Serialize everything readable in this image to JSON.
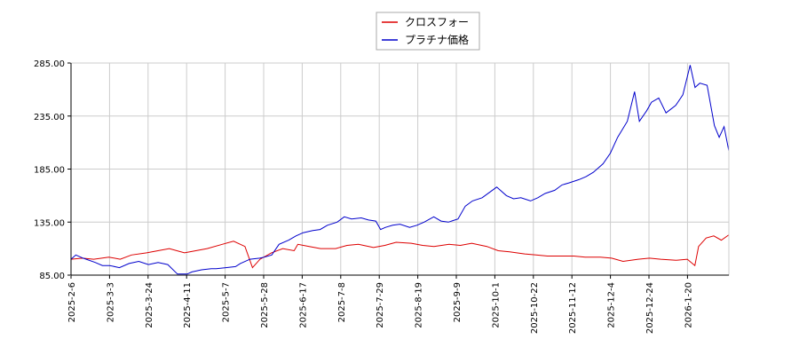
{
  "chart_data": {
    "type": "line",
    "title": "",
    "xlabel": "",
    "ylabel": "",
    "ylim": [
      85,
      285
    ],
    "yticks": [
      "85.00",
      "135.00",
      "185.00",
      "235.00",
      "285.00"
    ],
    "xticks": [
      "2025-2-6",
      "2025-3-3",
      "2025-3-24",
      "2025-4-11",
      "2025-5-7",
      "2025-5-28",
      "2025-6-17",
      "2025-7-8",
      "2025-7-29",
      "2025-8-19",
      "2025-9-9",
      "2025-10-1",
      "2025-10-22",
      "2025-11-12",
      "2025-12-4",
      "2025-12-24",
      "2026-1-20"
    ],
    "grid": true,
    "legend_position": "top-center",
    "colors": {
      "series_1": "#dd0000",
      "series_2": "#0000cc",
      "grid": "#cccccc",
      "axis": "#000000"
    },
    "series": [
      {
        "name": "クロスフォー",
        "points": [
          [
            0,
            100
          ],
          [
            0.3,
            101
          ],
          [
            0.6,
            100
          ],
          [
            1,
            102
          ],
          [
            1.3,
            100
          ],
          [
            1.6,
            104
          ],
          [
            2,
            106
          ],
          [
            2.3,
            108
          ],
          [
            2.6,
            110
          ],
          [
            3,
            106
          ],
          [
            3.3,
            108
          ],
          [
            3.6,
            110
          ],
          [
            4,
            114
          ],
          [
            4.3,
            117
          ],
          [
            4.6,
            112
          ],
          [
            4.8,
            92
          ],
          [
            5,
            100
          ],
          [
            5.3,
            106
          ],
          [
            5.6,
            110
          ],
          [
            5.9,
            108
          ],
          [
            6,
            114
          ],
          [
            6.3,
            112
          ],
          [
            6.6,
            110
          ],
          [
            7,
            110
          ],
          [
            7.3,
            113
          ],
          [
            7.6,
            114
          ],
          [
            8,
            111
          ],
          [
            8.3,
            113
          ],
          [
            8.6,
            116
          ],
          [
            9,
            115
          ],
          [
            9.3,
            113
          ],
          [
            9.6,
            112
          ],
          [
            10,
            114
          ],
          [
            10.3,
            113
          ],
          [
            10.6,
            115
          ],
          [
            11,
            112
          ],
          [
            11.3,
            108
          ],
          [
            11.6,
            107
          ],
          [
            12,
            105
          ],
          [
            12.3,
            104
          ],
          [
            12.6,
            103
          ],
          [
            13,
            103
          ],
          [
            13.3,
            103
          ],
          [
            13.6,
            102
          ],
          [
            14,
            102
          ],
          [
            14.3,
            101
          ],
          [
            14.6,
            98
          ],
          [
            15,
            100
          ],
          [
            15.3,
            101
          ],
          [
            15.6,
            100
          ],
          [
            16,
            99
          ],
          [
            16.3,
            100
          ],
          [
            16.5,
            94
          ],
          [
            16.6,
            112
          ],
          [
            16.8,
            120
          ],
          [
            17,
            122
          ],
          [
            17.2,
            118
          ],
          [
            17.4,
            123
          ]
        ]
      },
      {
        "name": "プラチナ価格",
        "points": [
          [
            0,
            100
          ],
          [
            0.2,
            104
          ],
          [
            0.5,
            101
          ],
          [
            1,
            97
          ],
          [
            1.3,
            94
          ],
          [
            1.6,
            94
          ],
          [
            2,
            92
          ],
          [
            2.4,
            96
          ],
          [
            2.8,
            98
          ],
          [
            3.2,
            95
          ],
          [
            3.6,
            97
          ],
          [
            4,
            95
          ],
          [
            4.4,
            86
          ],
          [
            4.8,
            86
          ],
          [
            5,
            88
          ],
          [
            5.4,
            90
          ],
          [
            5.8,
            91
          ],
          [
            6,
            91
          ],
          [
            6.4,
            92
          ],
          [
            6.8,
            93
          ],
          [
            7,
            96
          ],
          [
            7.4,
            100
          ],
          [
            7.8,
            101
          ],
          [
            8,
            102
          ],
          [
            8.3,
            104
          ],
          [
            8.6,
            114
          ],
          [
            9,
            118
          ],
          [
            9.3,
            122
          ],
          [
            9.6,
            125
          ],
          [
            10,
            127
          ],
          [
            10.3,
            128
          ],
          [
            10.6,
            132
          ],
          [
            11,
            135
          ],
          [
            11.3,
            140
          ],
          [
            11.6,
            138
          ],
          [
            12,
            139
          ],
          [
            12.3,
            137
          ],
          [
            12.6,
            136
          ],
          [
            12.8,
            128
          ],
          [
            13,
            130
          ],
          [
            13.3,
            132
          ],
          [
            13.6,
            133
          ],
          [
            14,
            130
          ],
          [
            14.3,
            132
          ],
          [
            14.6,
            135
          ],
          [
            15,
            140
          ],
          [
            15.3,
            136
          ],
          [
            15.6,
            135
          ],
          [
            16,
            138
          ],
          [
            16.3,
            150
          ],
          [
            16.6,
            155
          ],
          [
            17,
            158
          ],
          [
            17.3,
            163
          ],
          [
            17.6,
            168
          ],
          [
            18,
            160
          ],
          [
            18.3,
            157
          ],
          [
            18.6,
            158
          ],
          [
            19,
            155
          ],
          [
            19.3,
            158
          ],
          [
            19.6,
            162
          ],
          [
            20,
            165
          ],
          [
            20.3,
            170
          ],
          [
            20.6,
            172
          ],
          [
            21,
            175
          ],
          [
            21.3,
            178
          ],
          [
            21.6,
            182
          ],
          [
            22,
            190
          ],
          [
            22.3,
            200
          ],
          [
            22.6,
            215
          ],
          [
            23,
            230
          ],
          [
            23.3,
            258
          ],
          [
            23.5,
            230
          ],
          [
            23.8,
            240
          ],
          [
            24,
            248
          ],
          [
            24.3,
            252
          ],
          [
            24.6,
            238
          ],
          [
            25,
            245
          ],
          [
            25.3,
            255
          ],
          [
            25.6,
            283
          ],
          [
            25.8,
            262
          ],
          [
            26,
            266
          ],
          [
            26.3,
            264
          ],
          [
            26.6,
            226
          ],
          [
            26.8,
            215
          ],
          [
            27,
            225
          ],
          [
            27.2,
            202
          ]
        ]
      }
    ]
  }
}
